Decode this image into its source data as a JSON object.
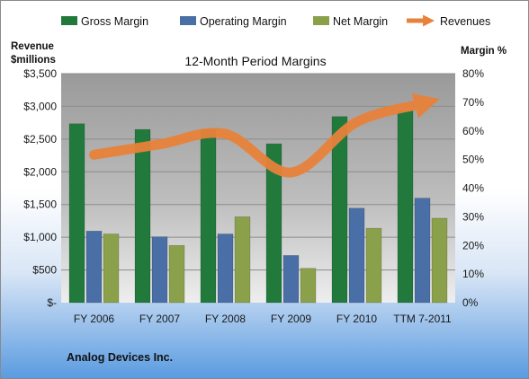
{
  "chart_data": {
    "type": "bar",
    "title": "12-Month Period Margins",
    "company": "Analog Devices Inc.",
    "categories": [
      "FY 2006",
      "FY 2007",
      "FY 2008",
      "FY 2009",
      "FY 2010",
      "TTM 7-2011"
    ],
    "left_axis": {
      "label_line1": "Revenue",
      "label_line2": "$millions",
      "range": [
        0,
        3500
      ],
      "ticks": [
        0,
        500,
        1000,
        1500,
        2000,
        2500,
        3000,
        3500
      ],
      "tick_labels": [
        "$-",
        "$500",
        "$1,000",
        "$1,500",
        "$2,000",
        "$2,500",
        "$3,000",
        "$3,500"
      ]
    },
    "right_axis": {
      "label": "Margin %",
      "range": [
        0,
        80
      ],
      "ticks": [
        0,
        10,
        20,
        30,
        40,
        50,
        60,
        70,
        80
      ],
      "tick_labels": [
        "0%",
        "10%",
        "20%",
        "30%",
        "40%",
        "50%",
        "60%",
        "70%",
        "80%"
      ]
    },
    "series": [
      {
        "name": "Gross Margin",
        "type": "bar",
        "axis": "right",
        "color": "#217a3c",
        "values": [
          62.5,
          60.5,
          60.5,
          55.5,
          65.0,
          67.0
        ]
      },
      {
        "name": "Operating Margin",
        "type": "bar",
        "axis": "right",
        "color": "#4a6fa6",
        "values": [
          25.0,
          23.0,
          24.0,
          16.5,
          33.0,
          36.5
        ]
      },
      {
        "name": "Net Margin",
        "type": "bar",
        "axis": "right",
        "color": "#8ba04a",
        "values": [
          24.0,
          20.0,
          30.0,
          12.0,
          26.0,
          29.5
        ]
      },
      {
        "name": "Revenues",
        "type": "line",
        "axis": "left",
        "color": "#e8823a",
        "values": [
          2260,
          2420,
          2580,
          1990,
          2760,
          3040
        ]
      }
    ],
    "grid": true,
    "legend_position": "top"
  }
}
